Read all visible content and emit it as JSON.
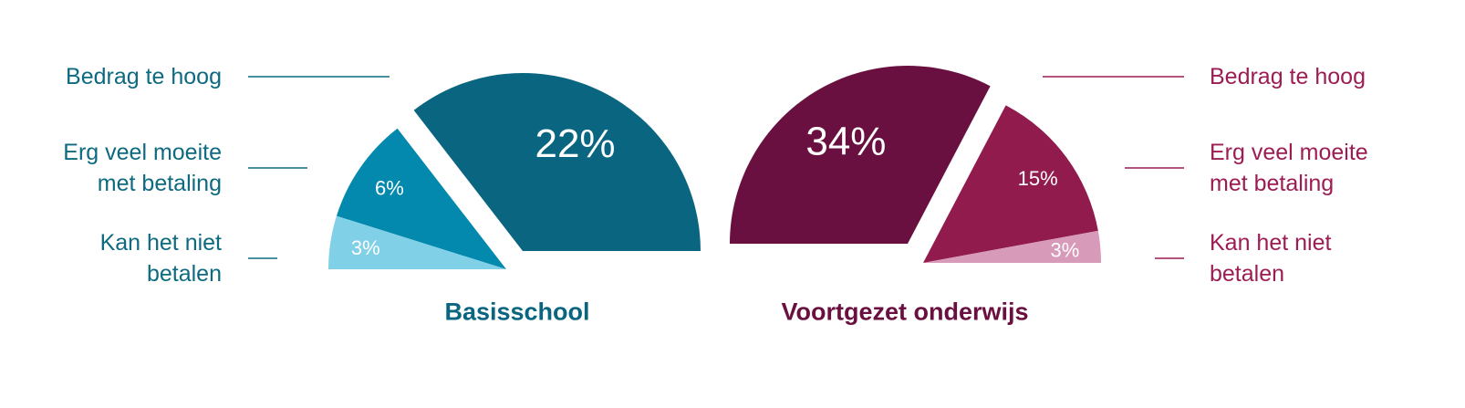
{
  "chart_data": [
    {
      "type": "pie",
      "title": "Basisschool",
      "categories": [
        "Bedrag te hoog",
        "Erg veel moeite met betaling",
        "Kan het niet betalen"
      ],
      "values": [
        22,
        6,
        3
      ],
      "value_labels": [
        "22%",
        "6%",
        "3%"
      ],
      "colors": [
        "#0a6680",
        "#0389ad",
        "#80d0e8"
      ],
      "label_color": "#0d6a80"
    },
    {
      "type": "pie",
      "title": "Voortgezet onderwijs",
      "categories": [
        "Bedrag te hoog",
        "Erg veel moeite met betaling",
        "Kan het niet betalen"
      ],
      "values": [
        34,
        15,
        3
      ],
      "value_labels": [
        "34%",
        "15%",
        "3%"
      ],
      "colors": [
        "#6a1040",
        "#921b4e",
        "#d79ab8"
      ],
      "label_color": "#9c1c54"
    }
  ]
}
